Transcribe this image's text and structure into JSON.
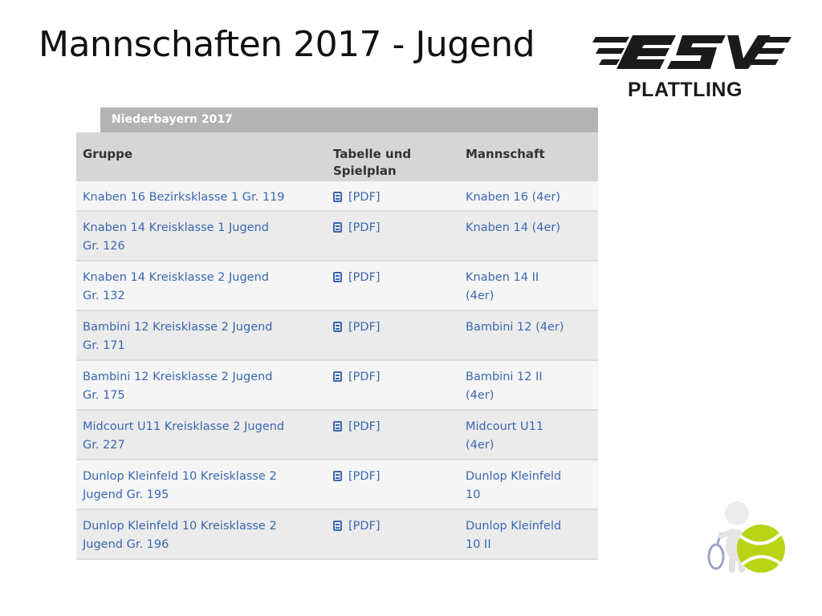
{
  "slide": {
    "title": "Mannschaften 2017 - Jugend",
    "logo_text": "PLATTLING",
    "logo_brand": "ESV"
  },
  "widget": {
    "title": "Niederbayern 2017"
  },
  "table": {
    "headers": {
      "gruppe": "Gruppe",
      "tabelle_line1": "Tabelle und",
      "tabelle_line2": "Spielplan",
      "mannschaft": "Mannschaft"
    },
    "rows": [
      {
        "gruppe_line1": "Knaben 16 Bezirksklasse 1 Gr. 119",
        "gruppe_line2": "",
        "pdf": "[PDF]",
        "team_line1": "Knaben 16 (4er)",
        "team_line2": ""
      },
      {
        "gruppe_line1": "Knaben 14 Kreisklasse 1 Jugend",
        "gruppe_line2": "Gr. 126",
        "pdf": "[PDF]",
        "team_line1": "Knaben 14 (4er)",
        "team_line2": ""
      },
      {
        "gruppe_line1": "Knaben 14 Kreisklasse 2 Jugend",
        "gruppe_line2": "Gr. 132",
        "pdf": "[PDF]",
        "team_line1": "Knaben 14 II",
        "team_line2": "(4er)"
      },
      {
        "gruppe_line1": "Bambini 12 Kreisklasse 2 Jugend",
        "gruppe_line2": "Gr. 171",
        "pdf": "[PDF]",
        "team_line1": "Bambini 12 (4er)",
        "team_line2": ""
      },
      {
        "gruppe_line1": "Bambini 12 Kreisklasse 2 Jugend",
        "gruppe_line2": "Gr. 175",
        "pdf": "[PDF]",
        "team_line1": "Bambini 12 II",
        "team_line2": "(4er)"
      },
      {
        "gruppe_line1": "Midcourt U11 Kreisklasse 2 Jugend",
        "gruppe_line2": "Gr. 227",
        "pdf": "[PDF]",
        "team_line1": "Midcourt U11",
        "team_line2": "(4er)"
      },
      {
        "gruppe_line1": "Dunlop Kleinfeld 10 Kreisklasse 2",
        "gruppe_line2": "Jugend Gr. 195",
        "pdf": "[PDF]",
        "team_line1": "Dunlop Kleinfeld",
        "team_line2": "10"
      },
      {
        "gruppe_line1": "Dunlop Kleinfeld 10 Kreisklasse 2",
        "gruppe_line2": "Jugend Gr. 196",
        "pdf": "[PDF]",
        "team_line1": "Dunlop Kleinfeld",
        "team_line2": "10 II"
      }
    ]
  },
  "colors": {
    "link": "#3a67b0",
    "header_bar": "#b3b3b3",
    "thead": "#d6d6d6",
    "ball": "#b8d414"
  },
  "icons": [
    "esv-logo",
    "pdf-icon",
    "tennis-figure-icon"
  ]
}
